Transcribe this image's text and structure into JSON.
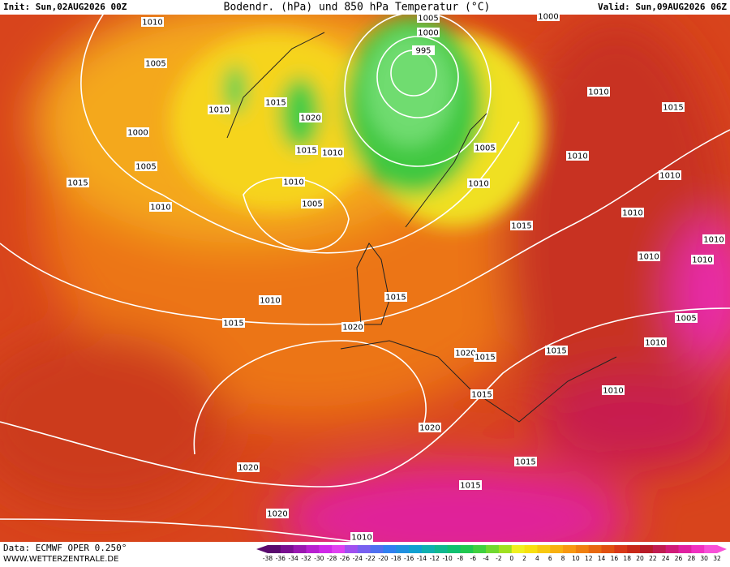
{
  "header": {
    "init": "Init: Sun,02AUG2026 00Z",
    "title": "Bodendr. (hPa) und 850 hPa Temperatur (°C)",
    "valid": "Valid: Sun,09AUG2026 06Z"
  },
  "isobar_labels": [
    "1010",
    "1005",
    "1000",
    "995",
    "1000",
    "1005",
    "1010",
    "1015",
    "1020",
    "1000",
    "1015",
    "1010",
    "1005",
    "1010",
    "1015",
    "1005",
    "1015",
    "1010",
    "1005",
    "1010",
    "1010",
    "1010",
    "1010",
    "1010",
    "1015",
    "1010",
    "1010",
    "1010",
    "1010",
    "1015",
    "1015",
    "1020",
    "1005",
    "1010",
    "1015",
    "1020",
    "1015",
    "1015",
    "1010",
    "1020",
    "1020",
    "1015",
    "1015",
    "1020",
    "1010"
  ],
  "footer": {
    "source": "Data: ECMWF OPER 0.250°",
    "site": "WWW.WETTERZENTRALE.DE"
  },
  "colorbar": {
    "labels": [
      -38,
      -36,
      -34,
      -32,
      -30,
      -28,
      -26,
      -24,
      -22,
      -20,
      -18,
      -16,
      -14,
      -12,
      -10,
      -8,
      -6,
      -4,
      -2,
      0,
      2,
      4,
      6,
      8,
      10,
      12,
      14,
      16,
      18,
      20,
      22,
      24,
      26,
      28,
      30,
      32
    ],
    "colors": [
      "#5a0a6e",
      "#7a1090",
      "#9a18b0",
      "#b820d0",
      "#d028e8",
      "#e040f0",
      "#a050f0",
      "#7860f0",
      "#5070f0",
      "#3080f0",
      "#2090e0",
      "#10a0d0",
      "#10b0b0",
      "#10b890",
      "#10c070",
      "#20c850",
      "#40d040",
      "#70d830",
      "#a0e020",
      "#f0f020",
      "#f8e010",
      "#f8c810",
      "#f8b010",
      "#f89810",
      "#f08010",
      "#e86810",
      "#e05010",
      "#d83818",
      "#c82818",
      "#b81c28",
      "#c01c50",
      "#d01c78",
      "#e020a0",
      "#f030c0",
      "#f850d8"
    ]
  }
}
